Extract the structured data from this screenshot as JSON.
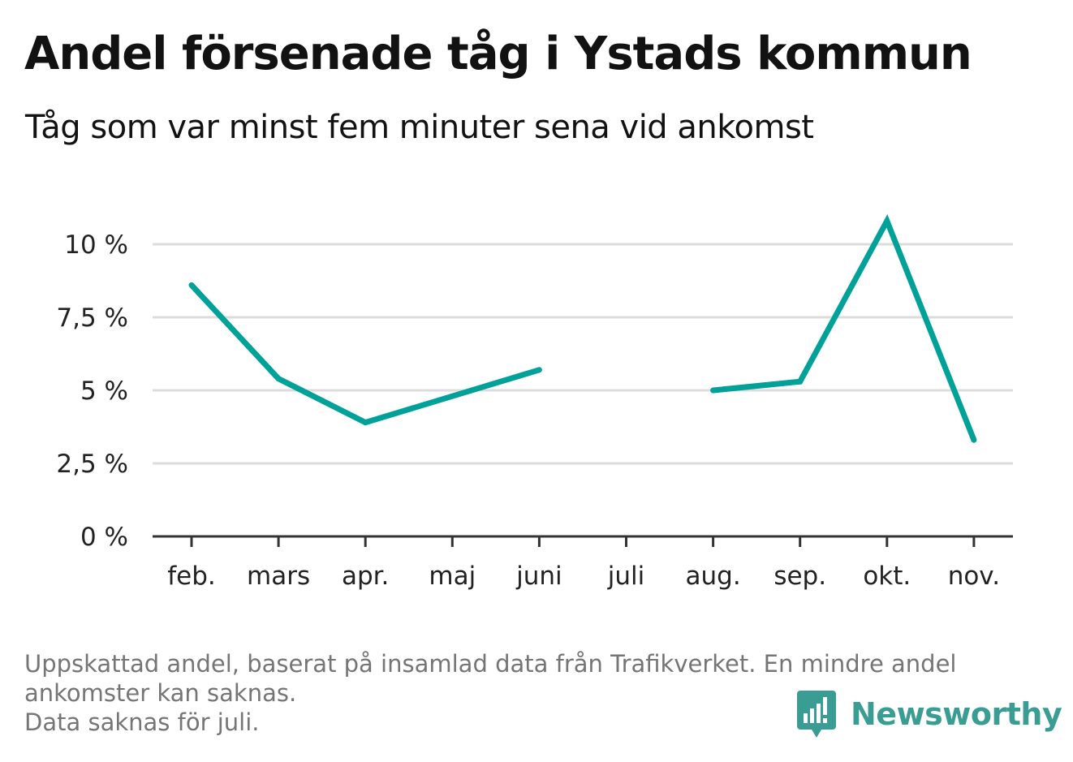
{
  "header": {
    "title": "Andel försenade tåg i Ystads kommun",
    "subtitle": "Tåg som var minst fem minuter sena vid ankomst"
  },
  "footnote": {
    "line1": "Uppskattad andel, baserat på insamlad data från Trafikverket. En mindre andel",
    "line2": "ankomster kan saknas.",
    "line3": "Data saknas för juli."
  },
  "brand": {
    "name": "Newsworthy",
    "icon": "newsworthy-logo-icon",
    "color": "#3a9d93"
  },
  "chart_data": {
    "type": "line",
    "categories": [
      "feb.",
      "mars",
      "apr.",
      "maj",
      "juni",
      "juli",
      "aug.",
      "sep.",
      "okt.",
      "nov."
    ],
    "series": [
      {
        "values": [
          8.6,
          5.4,
          3.9,
          4.8,
          5.7,
          null,
          5.0,
          5.3,
          10.8,
          3.3
        ]
      }
    ],
    "ylim": [
      0,
      10.8
    ],
    "yticks": [
      0,
      2.5,
      5,
      7.5,
      10
    ],
    "ytick_labels": [
      "0 %",
      "2,5 %",
      "5 %",
      "7,5 %",
      "10 %"
    ],
    "xlabel": "",
    "ylabel": "",
    "grid": true,
    "line_color": "#00a199",
    "grid_color": "#dcdcdc",
    "axis_color": "#333333"
  }
}
